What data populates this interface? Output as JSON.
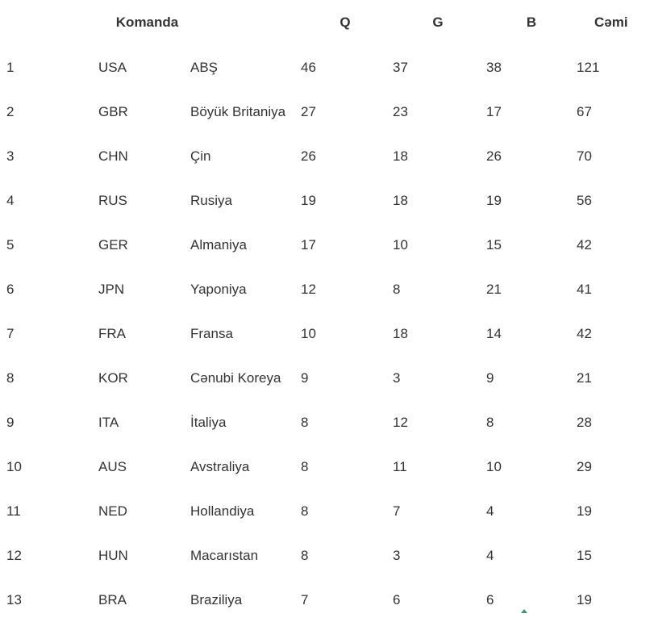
{
  "table": {
    "headers": {
      "team": "Komanda",
      "gold": "Q",
      "silver": "G",
      "bronze": "B",
      "total": "Cəmi"
    },
    "rows": [
      {
        "rank": "1",
        "code": "USA",
        "name": "ABŞ",
        "gold": "46",
        "silver": "37",
        "bronze": "38",
        "total": "121"
      },
      {
        "rank": "2",
        "code": "GBR",
        "name": "Böyük Britaniya",
        "gold": "27",
        "silver": "23",
        "bronze": "17",
        "total": "67"
      },
      {
        "rank": "3",
        "code": "CHN",
        "name": "Çin",
        "gold": "26",
        "silver": "18",
        "bronze": "26",
        "total": "70"
      },
      {
        "rank": "4",
        "code": "RUS",
        "name": "Rusiya",
        "gold": "19",
        "silver": "18",
        "bronze": "19",
        "total": "56"
      },
      {
        "rank": "5",
        "code": "GER",
        "name": "Almaniya",
        "gold": "17",
        "silver": "10",
        "bronze": "15",
        "total": "42"
      },
      {
        "rank": "6",
        "code": "JPN",
        "name": "Yaponiya",
        "gold": "12",
        "silver": "8",
        "bronze": "21",
        "total": "41"
      },
      {
        "rank": "7",
        "code": "FRA",
        "name": "Fransa",
        "gold": "10",
        "silver": "18",
        "bronze": "14",
        "total": "42"
      },
      {
        "rank": "8",
        "code": "KOR",
        "name": "Cənubi Koreya",
        "gold": "9",
        "silver": "3",
        "bronze": "9",
        "total": "21"
      },
      {
        "rank": "9",
        "code": "ITA",
        "name": "İtaliya",
        "gold": "8",
        "silver": "12",
        "bronze": "8",
        "total": "28"
      },
      {
        "rank": "10",
        "code": "AUS",
        "name": "Avstraliya",
        "gold": "8",
        "silver": "11",
        "bronze": "10",
        "total": "29"
      },
      {
        "rank": "11",
        "code": "NED",
        "name": "Hollandiya",
        "gold": "8",
        "silver": "7",
        "bronze": "4",
        "total": "19"
      },
      {
        "rank": "12",
        "code": "HUN",
        "name": "Macarıstan",
        "gold": "8",
        "silver": "3",
        "bronze": "4",
        "total": "15"
      },
      {
        "rank": "13",
        "code": "BRA",
        "name": "Braziliya",
        "gold": "7",
        "silver": "6",
        "bronze": "6",
        "total": "19"
      }
    ]
  }
}
